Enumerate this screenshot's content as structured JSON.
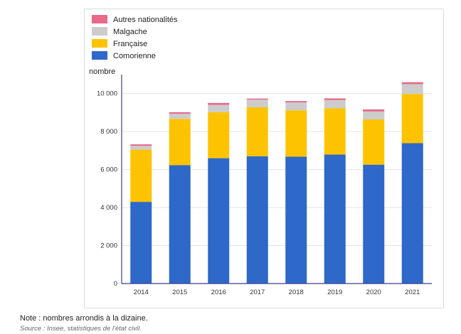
{
  "chart_data": {
    "type": "bar",
    "stacked": true,
    "categories": [
      "2014",
      "2015",
      "2016",
      "2017",
      "2018",
      "2019",
      "2020",
      "2021"
    ],
    "series": [
      {
        "name": "Comorienne",
        "color": "#2e68c8",
        "values": [
          4300,
          6230,
          6600,
          6700,
          6680,
          6790,
          6260,
          7390
        ]
      },
      {
        "name": "Française",
        "color": "#fdc300",
        "values": [
          2750,
          2440,
          2420,
          2580,
          2440,
          2440,
          2380,
          2590
        ]
      },
      {
        "name": "Malgache",
        "color": "#cccccc",
        "values": [
          200,
          270,
          390,
          400,
          410,
          430,
          420,
          520
        ]
      },
      {
        "name": "Autres nationalités",
        "color": "#e8698a",
        "values": [
          80,
          80,
          100,
          60,
          80,
          90,
          110,
          100
        ]
      }
    ],
    "legend_order": [
      "Autres nationalités",
      "Malgache",
      "Française",
      "Comorienne"
    ],
    "legend_position": "top-left",
    "ylabel": "nombre",
    "xlabel": "",
    "ylim": [
      0,
      11000
    ],
    "yticks": [
      0,
      2000,
      4000,
      6000,
      8000,
      10000
    ],
    "ytick_labels": [
      "0",
      "2 000",
      "4 000",
      "6 000",
      "8 000",
      "10 000"
    ],
    "grid": true
  },
  "note": "Note : nombres arrondis à la dizaine.",
  "source": "Source : Insee, statistiques de l'état civil."
}
